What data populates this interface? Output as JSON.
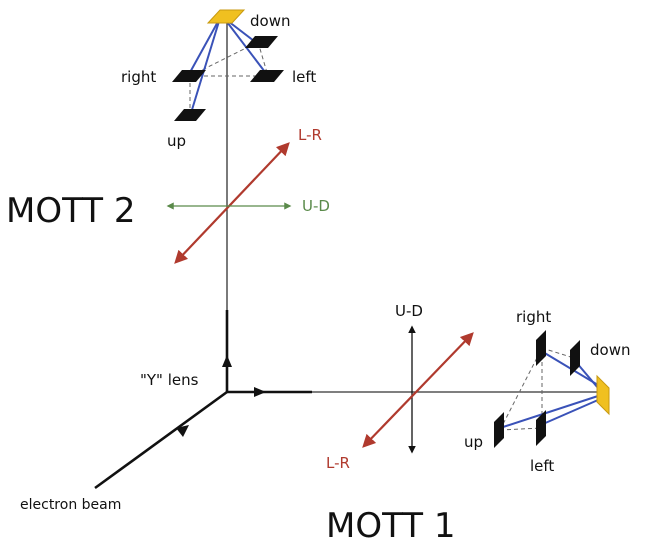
{
  "colors": {
    "axis": "#333333",
    "target": "#f0c020",
    "detector": "#111111",
    "trajectory": "#3a52b8",
    "lr_arrow": "#b03a2e",
    "ud_arrow_mott2": "#5a8a4a",
    "ud_arrow_mott1": "#111111",
    "dashed": "#666666"
  },
  "mott2": {
    "title": "MOTT 2",
    "detectors": {
      "down": "down",
      "right": "right",
      "left": "left",
      "up": "up"
    },
    "lr_label": "L-R",
    "ud_label": "U-D"
  },
  "mott1": {
    "title": "MOTT 1",
    "detectors": {
      "right": "right",
      "down": "down",
      "up": "up",
      "left": "left"
    },
    "lr_label": "L-R",
    "ud_label": "U-D"
  },
  "y_lens_label": "\"Y\" lens",
  "electron_beam_label": "electron beam"
}
